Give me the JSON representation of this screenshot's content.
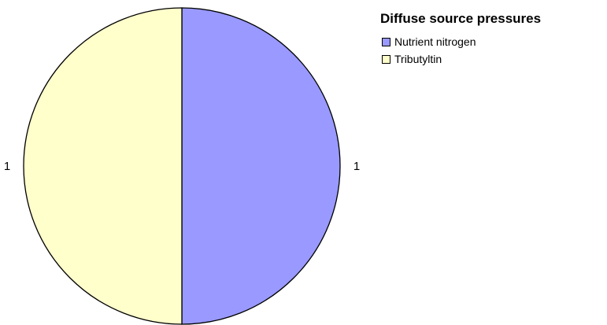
{
  "chart_data": {
    "type": "pie",
    "legend_title": "Diffuse source pressures",
    "legend_position": "top-right",
    "categories": [
      "Nutrient nitrogen",
      "Tributyltin"
    ],
    "values": [
      1,
      1
    ],
    "data_labels": [
      "1",
      "1"
    ],
    "colors": [
      "#9999ff",
      "#ffffcc"
    ],
    "outline_color": "#000000",
    "start_angle_deg": 0,
    "direction": "clockwise"
  }
}
